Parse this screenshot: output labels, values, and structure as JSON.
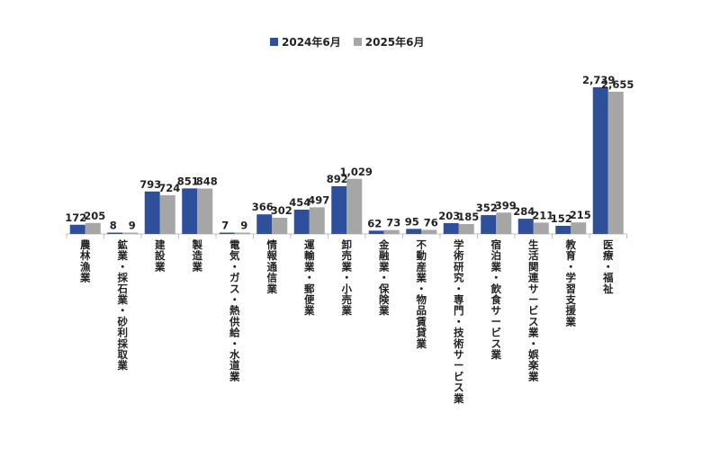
{
  "chart_data": {
    "type": "bar",
    "categories": [
      "農林漁業",
      "鉱業・採石業・砂利採取業",
      "建設業",
      "製造業",
      "電気・ガス・熱供給・水道業",
      "情報通信業",
      "運輸業・郵便業",
      "卸売業・小売業",
      "金融業・保険業",
      "不動産業・物品賃貸業",
      "学術研究・専門・技術サービス業",
      "宿泊業・飲食サービス業",
      "生活関連サービス業・娯楽業",
      "教育・学習支援業",
      "医療・福祉"
    ],
    "series": [
      {
        "name": "2024年6月",
        "color": "#2e4f9a",
        "values": [
          172,
          8,
          793,
          851,
          7,
          366,
          454,
          892,
          62,
          95,
          203,
          352,
          284,
          152,
          2739
        ],
        "labels": [
          "172",
          "8",
          "793",
          "851",
          "7",
          "366",
          "454",
          "892",
          "62",
          "95",
          "203",
          "352",
          "284",
          "152",
          "2,739"
        ]
      },
      {
        "name": "2025年6月",
        "color": "#a6a6a6",
        "values": [
          205,
          9,
          724,
          848,
          9,
          302,
          497,
          1029,
          73,
          76,
          185,
          399,
          211,
          215,
          2655
        ],
        "labels": [
          "205",
          "9",
          "724",
          "848",
          "9",
          "302",
          "497",
          "1,029",
          "73",
          "76",
          "185",
          "399",
          "211",
          "215",
          "2,655"
        ]
      }
    ],
    "ylim": [
      0,
      2739
    ],
    "grid": false,
    "legend": "top-center"
  }
}
